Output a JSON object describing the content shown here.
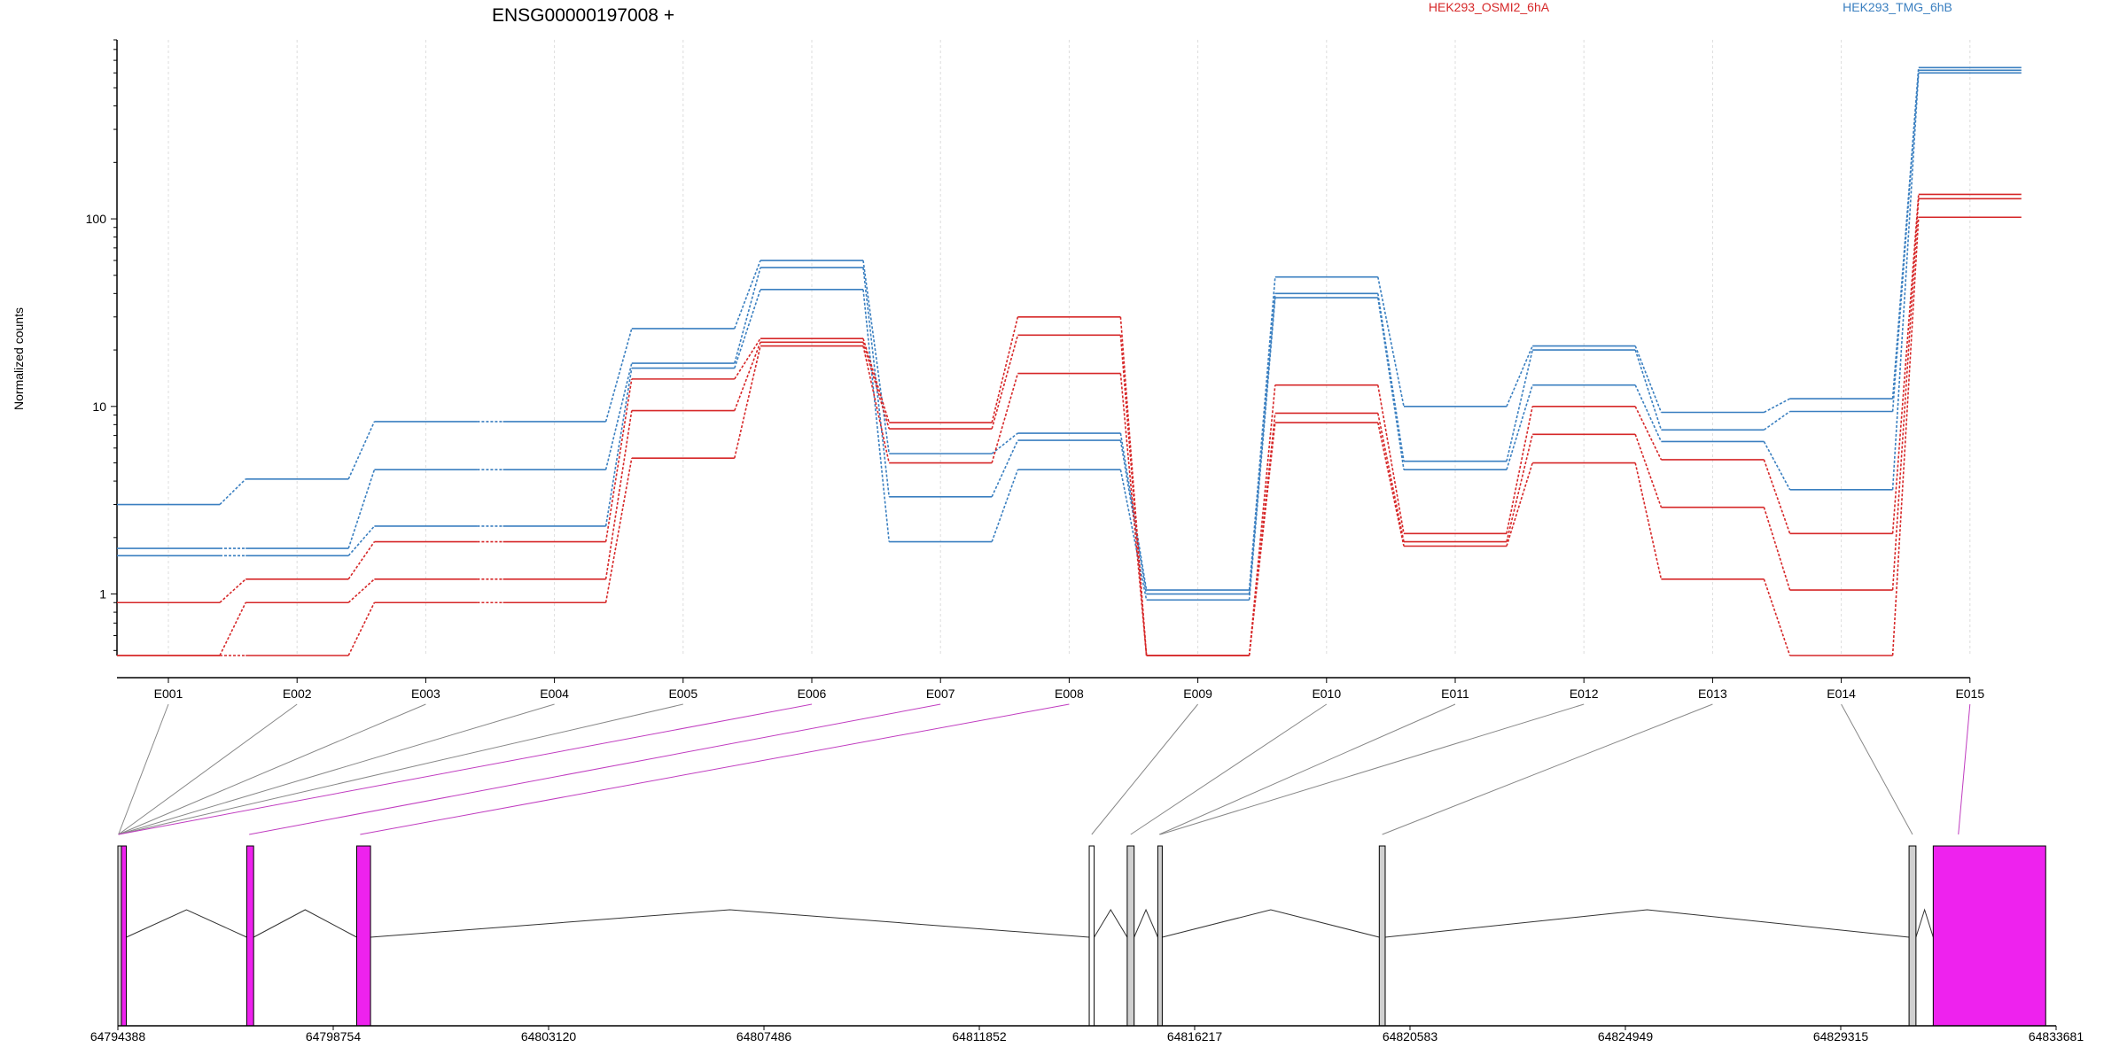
{
  "colors": {
    "condition_a": "#d62728",
    "condition_b": "#3a7fc0",
    "exon_used": "#ee22ee",
    "exon_other": "#d0d0d0",
    "exon_empty": "#ffffff",
    "link_used": "#c03cc0",
    "link_other": "#888888"
  },
  "chart_data": {
    "type": "line",
    "title": "ENSG00000197008 +",
    "ylabel": "Normalized counts",
    "y_scale": "log",
    "ylim": [
      0.47,
      900
    ],
    "y_ticks": [
      {
        "value": 1,
        "label": "1"
      },
      {
        "value": 10,
        "label": "10"
      },
      {
        "value": 100,
        "label": "100"
      }
    ],
    "grid": "vertical",
    "legend": {
      "placement": "top-right",
      "entries": [
        {
          "label": "HEK293_OSMI2_6hA",
          "color": "#d62728"
        },
        {
          "label": "HEK293_TMG_6hB",
          "color": "#3a7fc0"
        }
      ]
    },
    "categories": [
      "E001",
      "E002",
      "E003",
      "E004",
      "E005",
      "E006",
      "E007",
      "E008",
      "E009",
      "E010",
      "E011",
      "E012",
      "E013",
      "E014",
      "E015"
    ],
    "series": [
      {
        "color": "#3a7fc0",
        "values": [
          3.0,
          4.1,
          8.3,
          8.3,
          26,
          60,
          5.6,
          7.2,
          1.05,
          49,
          10,
          21,
          9.3,
          11,
          640
        ]
      },
      {
        "color": "#3a7fc0",
        "values": [
          1.75,
          1.75,
          4.6,
          4.6,
          17,
          55,
          3.3,
          6.6,
          1.0,
          40,
          5.1,
          20,
          7.5,
          9.4,
          620
        ]
      },
      {
        "color": "#3a7fc0",
        "values": [
          1.6,
          1.6,
          2.3,
          2.3,
          16,
          42,
          1.9,
          4.6,
          0.93,
          38,
          4.6,
          13,
          6.5,
          3.6,
          600
        ]
      },
      {
        "color": "#d62728",
        "values": [
          0.9,
          1.2,
          1.9,
          1.9,
          14,
          23,
          8.2,
          30,
          0.47,
          13,
          2.1,
          10,
          5.2,
          2.1,
          135
        ]
      },
      {
        "color": "#d62728",
        "values": [
          0.47,
          0.9,
          1.2,
          1.2,
          9.5,
          22,
          7.6,
          24,
          0.47,
          9.2,
          1.9,
          7.1,
          2.9,
          1.05,
          128
        ]
      },
      {
        "color": "#d62728",
        "values": [
          0.47,
          0.47,
          0.9,
          0.9,
          5.3,
          21,
          5.0,
          15,
          0.47,
          8.2,
          1.8,
          5.0,
          1.2,
          0.47,
          102
        ]
      }
    ],
    "gene_model": {
      "coordinate_range": [
        64794388,
        64833681
      ],
      "x_ticks": [
        64794388,
        64798754,
        64803120,
        64807486,
        64811852,
        64816217,
        64820583,
        64824949,
        64829315,
        64833681
      ],
      "exons": [
        {
          "start": 64794388,
          "end": 64794460,
          "style": "other"
        },
        {
          "start": 64794460,
          "end": 64794560,
          "style": "used"
        },
        {
          "start": 64797000,
          "end": 64797140,
          "style": "used"
        },
        {
          "start": 64799230,
          "end": 64799510,
          "style": "used"
        },
        {
          "start": 64814080,
          "end": 64814180,
          "style": "empty"
        },
        {
          "start": 64814850,
          "end": 64814990,
          "style": "other"
        },
        {
          "start": 64815470,
          "end": 64815560,
          "style": "other"
        },
        {
          "start": 64819960,
          "end": 64820080,
          "style": "other"
        },
        {
          "start": 64830700,
          "end": 64830840,
          "style": "other"
        },
        {
          "start": 64831190,
          "end": 64833470,
          "style": "used"
        }
      ],
      "introns": [
        {
          "from": 64794560,
          "to": 64797000
        },
        {
          "from": 64797140,
          "to": 64799230
        },
        {
          "from": 64799510,
          "to": 64814080
        },
        {
          "from": 64814180,
          "to": 64814850
        },
        {
          "from": 64814990,
          "to": 64815470
        },
        {
          "from": 64815560,
          "to": 64819960
        },
        {
          "from": 64820080,
          "to": 64830700
        },
        {
          "from": 64830840,
          "to": 64831190
        }
      ],
      "links": [
        {
          "bin": "E001",
          "target": 64794400,
          "style": "other"
        },
        {
          "bin": "E002",
          "target": 64794400,
          "style": "other"
        },
        {
          "bin": "E003",
          "target": 64794400,
          "style": "other"
        },
        {
          "bin": "E004",
          "target": 64794400,
          "style": "other"
        },
        {
          "bin": "E005",
          "target": 64794400,
          "style": "other"
        },
        {
          "bin": "E006",
          "target": 64794400,
          "style": "used"
        },
        {
          "bin": "E007",
          "target": 64797050,
          "style": "used"
        },
        {
          "bin": "E008",
          "target": 64799300,
          "style": "used"
        },
        {
          "bin": "E009",
          "target": 64814130,
          "style": "other"
        },
        {
          "bin": "E010",
          "target": 64814920,
          "style": "other"
        },
        {
          "bin": "E011",
          "target": 64815500,
          "style": "other"
        },
        {
          "bin": "E012",
          "target": 64815520,
          "style": "other"
        },
        {
          "bin": "E013",
          "target": 64820020,
          "style": "other"
        },
        {
          "bin": "E014",
          "target": 64830770,
          "style": "other"
        },
        {
          "bin": "E015",
          "target": 64831700,
          "style": "used"
        }
      ]
    }
  }
}
